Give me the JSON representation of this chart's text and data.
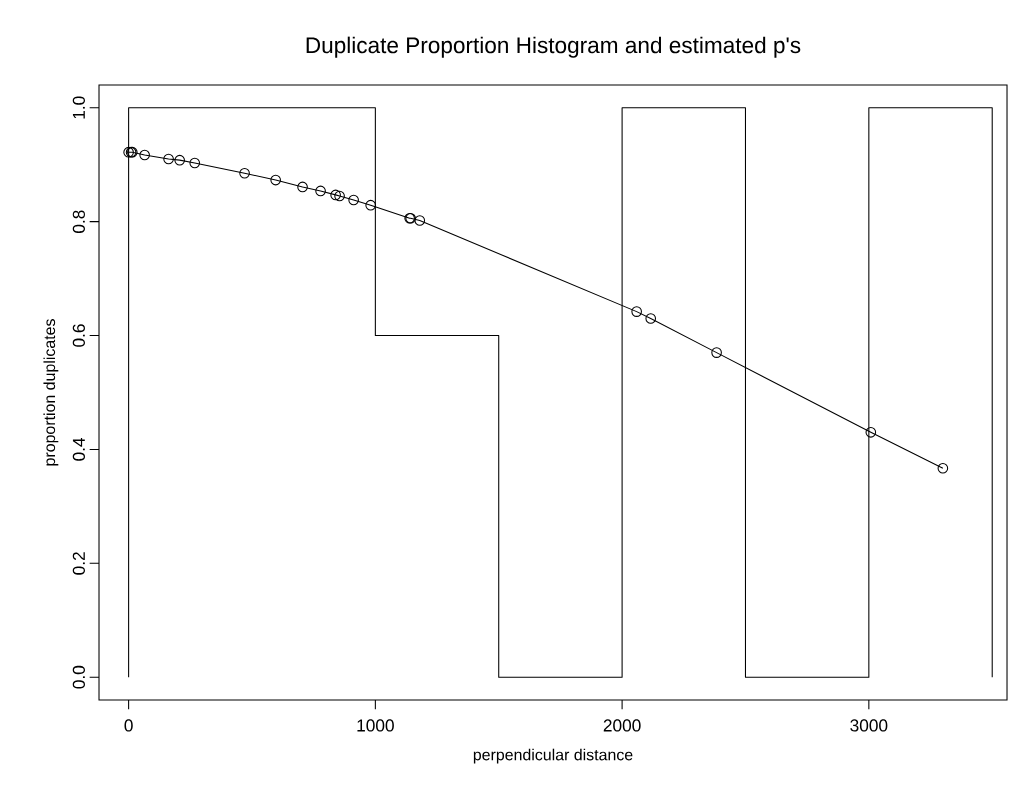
{
  "chart_data": {
    "type": "line",
    "title": "Duplicate Proportion Histogram and estimated p's",
    "xlabel": "perpendicular distance",
    "ylabel": "proportion duplicates",
    "xlim": [
      -120,
      3560
    ],
    "ylim": [
      -0.04,
      1.04
    ],
    "xticks": [
      0,
      1000,
      2000,
      3000
    ],
    "yticks": [
      {
        "value": 0,
        "label": "0.0"
      },
      {
        "value": 0.2,
        "label": "0.2"
      },
      {
        "value": 0.4,
        "label": "0.4"
      },
      {
        "value": 0.6,
        "label": "0.6"
      },
      {
        "value": 0.8,
        "label": "0.8"
      },
      {
        "value": 1,
        "label": "1.0"
      }
    ],
    "series": [
      {
        "color": "#000000",
        "x": [
          0,
          0,
          1000,
          1000,
          1500,
          1500,
          2000,
          2000,
          2500,
          2500,
          3000,
          3000,
          3500,
          3500
        ],
        "values": [
          0,
          1,
          1,
          0.6,
          0.6,
          0,
          0,
          1,
          1,
          0,
          0,
          1,
          1,
          0
        ]
      },
      {
        "color": "#000000",
        "marker": "circle",
        "x": [
          0,
          10,
          15,
          65,
          162,
          207,
          268,
          470,
          596,
          705,
          778,
          839,
          855,
          912,
          981,
          1139,
          1143,
          1180,
          2059,
          2116,
          2383,
          3008,
          3300
        ],
        "values": [
          0.922,
          0.922,
          0.922,
          0.917,
          0.91,
          0.908,
          0.903,
          0.885,
          0.873,
          0.861,
          0.854,
          0.847,
          0.845,
          0.838,
          0.829,
          0.806,
          0.806,
          0.802,
          0.642,
          0.63,
          0.57,
          0.43,
          0.367
        ]
      }
    ]
  }
}
